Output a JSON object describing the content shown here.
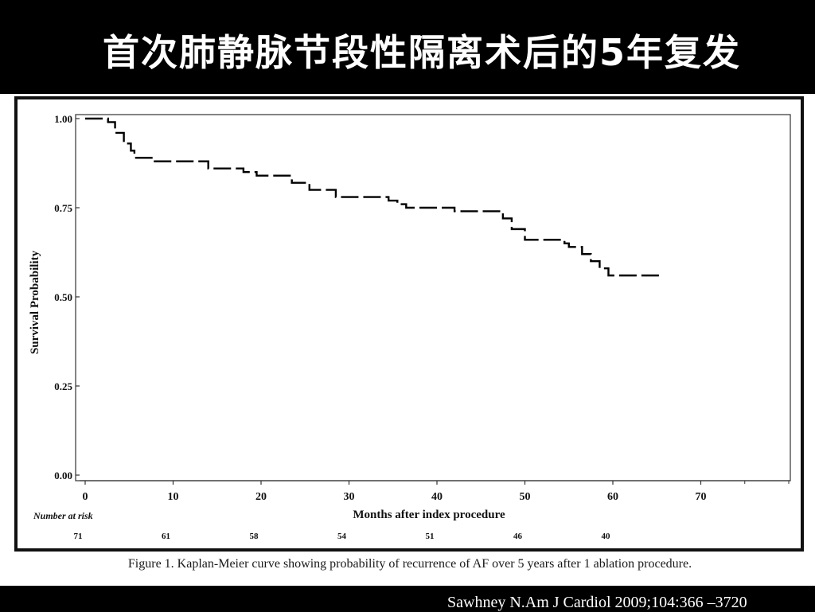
{
  "slide": {
    "title": "首次肺静脉节段性隔离术后的5年复发",
    "caption": "Figure 1. Kaplan-Meier curve showing probability of recurrence of AF over 5 years after 1 ablation procedure.",
    "citation": "Sawhney N.Am J Cardiol 2009;104:366 –3720"
  },
  "colors": {
    "background": "#000000",
    "panel": "#ffffff",
    "curve": "#000000",
    "title_text": "#ffffff"
  },
  "chart_data": {
    "type": "line",
    "title": "",
    "xlabel": "Months after index procedure",
    "ylabel": "Survival Probability",
    "xlim": [
      0,
      80
    ],
    "ylim": [
      0,
      1.0
    ],
    "x_ticks": [
      0,
      10,
      20,
      30,
      40,
      50,
      60,
      70
    ],
    "y_ticks": [
      0.0,
      0.25,
      0.5,
      0.75,
      1.0
    ],
    "y_tick_labels": [
      "0.00",
      "0.25",
      "0.50",
      "0.75",
      "1.00"
    ],
    "grid": false,
    "line_style": "dashed-step",
    "series": [
      {
        "x": [
          0,
          2.0,
          2.6,
          3.4,
          4.4,
          5.2,
          5.6,
          7.8,
          14,
          18,
          19.5,
          23.5,
          25.5,
          28.5,
          34.5,
          35.5,
          36.5,
          42,
          47.5,
          48.5,
          50.0,
          54.5,
          55.0,
          56.5,
          57.5,
          58.5,
          59.5,
          65.5
        ],
        "y": [
          1.0,
          1.0,
          0.99,
          0.96,
          0.93,
          0.91,
          0.89,
          0.88,
          0.86,
          0.85,
          0.84,
          0.82,
          0.8,
          0.78,
          0.77,
          0.76,
          0.75,
          0.74,
          0.72,
          0.69,
          0.66,
          0.65,
          0.64,
          0.62,
          0.6,
          0.58,
          0.56,
          0.56
        ]
      }
    ],
    "risk_table": {
      "label": "Number at risk",
      "x": [
        0,
        10,
        20,
        30,
        40,
        50,
        60
      ],
      "values": [
        "71",
        "61",
        "58",
        "54",
        "51",
        "46",
        "40"
      ]
    }
  }
}
